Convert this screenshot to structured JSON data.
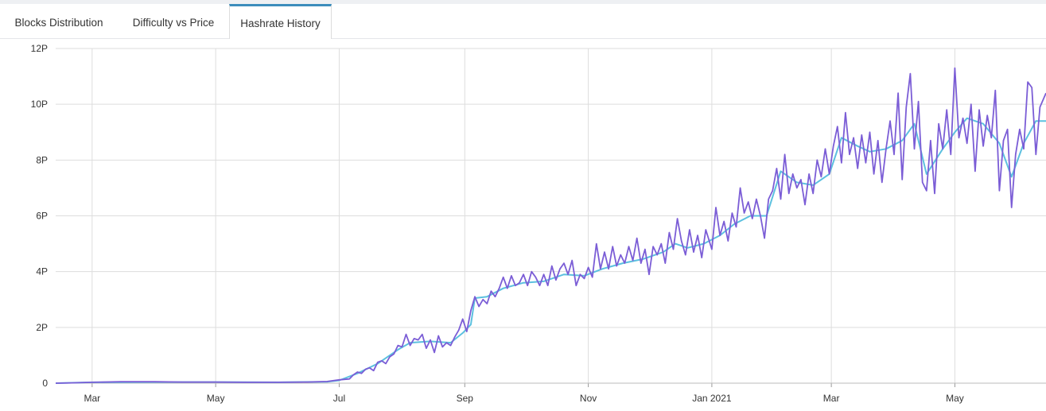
{
  "tabs": [
    {
      "label": "Blocks Distribution",
      "active": false
    },
    {
      "label": "Difficulty vs Price",
      "active": false
    },
    {
      "label": "Hashrate History",
      "active": true
    }
  ],
  "colors": {
    "hashrate": "#7b5dd6",
    "average": "#5cc0df",
    "grid": "#dddddd",
    "accent": "#3c8dbc"
  },
  "chart_data": {
    "type": "line",
    "title": "",
    "xlabel": "",
    "ylabel": "",
    "ylim": [
      0,
      12
    ],
    "y_unit": "P",
    "y_ticks": [
      {
        "value": 0,
        "label": "0"
      },
      {
        "value": 2,
        "label": "2P"
      },
      {
        "value": 4,
        "label": "4P"
      },
      {
        "value": 6,
        "label": "6P"
      },
      {
        "value": 8,
        "label": "8P"
      },
      {
        "value": 10,
        "label": "10P"
      },
      {
        "value": 12,
        "label": "12P"
      }
    ],
    "x_range": [
      "2020-02-12",
      "2021-06-15"
    ],
    "x_ticks": [
      {
        "date": "2020-03-01",
        "label": "Mar"
      },
      {
        "date": "2020-05-01",
        "label": "May"
      },
      {
        "date": "2020-07-01",
        "label": "Jul"
      },
      {
        "date": "2020-09-01",
        "label": "Sep"
      },
      {
        "date": "2020-11-01",
        "label": "Nov"
      },
      {
        "date": "2021-01-01",
        "label": "Jan 2021"
      },
      {
        "date": "2021-03-01",
        "label": "Mar"
      },
      {
        "date": "2021-05-01",
        "label": "May"
      }
    ],
    "grid": true,
    "legend": "none",
    "series": [
      {
        "role": "hashrate",
        "points": [
          [
            "2020-02-12",
            0.0
          ],
          [
            "2020-02-20",
            0.01
          ],
          [
            "2020-03-01",
            0.03
          ],
          [
            "2020-03-15",
            0.05
          ],
          [
            "2020-04-01",
            0.05
          ],
          [
            "2020-04-15",
            0.04
          ],
          [
            "2020-05-01",
            0.04
          ],
          [
            "2020-05-15",
            0.03
          ],
          [
            "2020-06-01",
            0.03
          ],
          [
            "2020-06-15",
            0.04
          ],
          [
            "2020-06-25",
            0.06
          ],
          [
            "2020-07-01",
            0.12
          ],
          [
            "2020-07-06",
            0.15
          ],
          [
            "2020-07-08",
            0.3
          ],
          [
            "2020-07-10",
            0.4
          ],
          [
            "2020-07-12",
            0.35
          ],
          [
            "2020-07-14",
            0.5
          ],
          [
            "2020-07-16",
            0.55
          ],
          [
            "2020-07-18",
            0.45
          ],
          [
            "2020-07-20",
            0.75
          ],
          [
            "2020-07-22",
            0.8
          ],
          [
            "2020-07-24",
            0.7
          ],
          [
            "2020-07-26",
            0.95
          ],
          [
            "2020-07-28",
            1.05
          ],
          [
            "2020-07-30",
            1.35
          ],
          [
            "2020-08-01",
            1.3
          ],
          [
            "2020-08-03",
            1.75
          ],
          [
            "2020-08-05",
            1.35
          ],
          [
            "2020-08-07",
            1.6
          ],
          [
            "2020-08-09",
            1.55
          ],
          [
            "2020-08-11",
            1.75
          ],
          [
            "2020-08-13",
            1.25
          ],
          [
            "2020-08-15",
            1.55
          ],
          [
            "2020-08-17",
            1.1
          ],
          [
            "2020-08-19",
            1.7
          ],
          [
            "2020-08-21",
            1.3
          ],
          [
            "2020-08-23",
            1.45
          ],
          [
            "2020-08-25",
            1.35
          ],
          [
            "2020-08-27",
            1.65
          ],
          [
            "2020-08-29",
            1.9
          ],
          [
            "2020-08-31",
            2.3
          ],
          [
            "2020-09-02",
            1.85
          ],
          [
            "2020-09-04",
            2.6
          ],
          [
            "2020-09-06",
            3.1
          ],
          [
            "2020-09-08",
            2.75
          ],
          [
            "2020-09-10",
            3.0
          ],
          [
            "2020-09-12",
            2.85
          ],
          [
            "2020-09-14",
            3.3
          ],
          [
            "2020-09-16",
            3.1
          ],
          [
            "2020-09-18",
            3.4
          ],
          [
            "2020-09-20",
            3.8
          ],
          [
            "2020-09-22",
            3.4
          ],
          [
            "2020-09-24",
            3.85
          ],
          [
            "2020-09-26",
            3.5
          ],
          [
            "2020-09-28",
            3.6
          ],
          [
            "2020-09-30",
            3.9
          ],
          [
            "2020-10-02",
            3.5
          ],
          [
            "2020-10-04",
            4.0
          ],
          [
            "2020-10-06",
            3.8
          ],
          [
            "2020-10-08",
            3.5
          ],
          [
            "2020-10-10",
            3.9
          ],
          [
            "2020-10-12",
            3.5
          ],
          [
            "2020-10-14",
            4.2
          ],
          [
            "2020-10-16",
            3.7
          ],
          [
            "2020-10-18",
            4.1
          ],
          [
            "2020-10-20",
            4.3
          ],
          [
            "2020-10-22",
            3.9
          ],
          [
            "2020-10-24",
            4.4
          ],
          [
            "2020-10-26",
            3.5
          ],
          [
            "2020-10-28",
            3.9
          ],
          [
            "2020-10-30",
            3.75
          ],
          [
            "2020-11-01",
            4.15
          ],
          [
            "2020-11-03",
            3.8
          ],
          [
            "2020-11-05",
            5.0
          ],
          [
            "2020-11-07",
            4.1
          ],
          [
            "2020-11-09",
            4.7
          ],
          [
            "2020-11-11",
            4.1
          ],
          [
            "2020-11-13",
            4.9
          ],
          [
            "2020-11-15",
            4.2
          ],
          [
            "2020-11-17",
            4.6
          ],
          [
            "2020-11-19",
            4.3
          ],
          [
            "2020-11-21",
            4.9
          ],
          [
            "2020-11-23",
            4.4
          ],
          [
            "2020-11-25",
            5.2
          ],
          [
            "2020-11-27",
            4.3
          ],
          [
            "2020-11-29",
            4.8
          ],
          [
            "2020-12-01",
            3.9
          ],
          [
            "2020-12-03",
            4.9
          ],
          [
            "2020-12-05",
            4.6
          ],
          [
            "2020-12-07",
            5.0
          ],
          [
            "2020-12-09",
            4.3
          ],
          [
            "2020-12-11",
            5.4
          ],
          [
            "2020-12-13",
            4.8
          ],
          [
            "2020-12-15",
            5.9
          ],
          [
            "2020-12-17",
            5.1
          ],
          [
            "2020-12-19",
            4.6
          ],
          [
            "2020-12-21",
            5.5
          ],
          [
            "2020-12-23",
            4.7
          ],
          [
            "2020-12-25",
            5.3
          ],
          [
            "2020-12-27",
            4.5
          ],
          [
            "2020-12-29",
            5.5
          ],
          [
            "2021-01-01",
            4.8
          ],
          [
            "2021-01-03",
            6.3
          ],
          [
            "2021-01-05",
            5.3
          ],
          [
            "2021-01-07",
            5.8
          ],
          [
            "2021-01-09",
            5.1
          ],
          [
            "2021-01-11",
            6.1
          ],
          [
            "2021-01-13",
            5.6
          ],
          [
            "2021-01-15",
            7.0
          ],
          [
            "2021-01-17",
            6.1
          ],
          [
            "2021-01-19",
            6.5
          ],
          [
            "2021-01-21",
            5.9
          ],
          [
            "2021-01-23",
            6.6
          ],
          [
            "2021-01-25",
            6.0
          ],
          [
            "2021-01-27",
            5.2
          ],
          [
            "2021-01-29",
            6.6
          ],
          [
            "2021-01-31",
            6.9
          ],
          [
            "2021-02-02",
            7.7
          ],
          [
            "2021-02-04",
            6.6
          ],
          [
            "2021-02-06",
            8.2
          ],
          [
            "2021-02-08",
            6.8
          ],
          [
            "2021-02-10",
            7.5
          ],
          [
            "2021-02-12",
            7.0
          ],
          [
            "2021-02-14",
            7.3
          ],
          [
            "2021-02-16",
            6.4
          ],
          [
            "2021-02-18",
            7.5
          ],
          [
            "2021-02-20",
            6.8
          ],
          [
            "2021-02-22",
            8.0
          ],
          [
            "2021-02-24",
            7.4
          ],
          [
            "2021-02-26",
            8.4
          ],
          [
            "2021-02-28",
            7.5
          ],
          [
            "2021-03-02",
            8.5
          ],
          [
            "2021-03-04",
            9.2
          ],
          [
            "2021-03-06",
            7.9
          ],
          [
            "2021-03-08",
            9.7
          ],
          [
            "2021-03-10",
            8.2
          ],
          [
            "2021-03-12",
            8.8
          ],
          [
            "2021-03-14",
            7.7
          ],
          [
            "2021-03-16",
            8.9
          ],
          [
            "2021-03-18",
            7.9
          ],
          [
            "2021-03-20",
            9.0
          ],
          [
            "2021-03-22",
            7.5
          ],
          [
            "2021-03-24",
            8.7
          ],
          [
            "2021-03-26",
            7.2
          ],
          [
            "2021-03-28",
            8.4
          ],
          [
            "2021-03-30",
            9.4
          ],
          [
            "2021-04-01",
            8.2
          ],
          [
            "2021-04-03",
            10.4
          ],
          [
            "2021-04-05",
            7.3
          ],
          [
            "2021-04-07",
            9.9
          ],
          [
            "2021-04-09",
            11.1
          ],
          [
            "2021-04-11",
            8.4
          ],
          [
            "2021-04-13",
            10.1
          ],
          [
            "2021-04-15",
            7.2
          ],
          [
            "2021-04-17",
            6.9
          ],
          [
            "2021-04-19",
            8.7
          ],
          [
            "2021-04-21",
            6.8
          ],
          [
            "2021-04-23",
            9.3
          ],
          [
            "2021-04-25",
            8.4
          ],
          [
            "2021-04-27",
            9.8
          ],
          [
            "2021-04-29",
            8.2
          ],
          [
            "2021-05-01",
            11.3
          ],
          [
            "2021-05-03",
            8.8
          ],
          [
            "2021-05-05",
            9.5
          ],
          [
            "2021-05-07",
            8.6
          ],
          [
            "2021-05-09",
            10.0
          ],
          [
            "2021-05-11",
            7.6
          ],
          [
            "2021-05-13",
            9.8
          ],
          [
            "2021-05-15",
            8.5
          ],
          [
            "2021-05-17",
            9.6
          ],
          [
            "2021-05-19",
            8.8
          ],
          [
            "2021-05-21",
            10.5
          ],
          [
            "2021-05-23",
            6.9
          ],
          [
            "2021-05-25",
            8.7
          ],
          [
            "2021-05-27",
            9.1
          ],
          [
            "2021-05-29",
            6.3
          ],
          [
            "2021-05-31",
            8.2
          ],
          [
            "2021-06-02",
            9.1
          ],
          [
            "2021-06-04",
            8.4
          ],
          [
            "2021-06-06",
            10.8
          ],
          [
            "2021-06-08",
            10.6
          ],
          [
            "2021-06-10",
            8.2
          ],
          [
            "2021-06-12",
            9.9
          ],
          [
            "2021-06-15",
            10.4
          ]
        ]
      },
      {
        "role": "average",
        "points": [
          [
            "2020-02-12",
            0.0
          ],
          [
            "2020-03-01",
            0.03
          ],
          [
            "2020-04-01",
            0.04
          ],
          [
            "2020-05-01",
            0.04
          ],
          [
            "2020-06-01",
            0.03
          ],
          [
            "2020-06-25",
            0.05
          ],
          [
            "2020-07-01",
            0.1
          ],
          [
            "2020-07-10",
            0.35
          ],
          [
            "2020-07-20",
            0.7
          ],
          [
            "2020-07-30",
            1.2
          ],
          [
            "2020-08-05",
            1.45
          ],
          [
            "2020-08-15",
            1.5
          ],
          [
            "2020-08-25",
            1.45
          ],
          [
            "2020-08-31",
            1.8
          ],
          [
            "2020-09-04",
            2.1
          ],
          [
            "2020-09-06",
            3.05
          ],
          [
            "2020-09-12",
            3.1
          ],
          [
            "2020-09-20",
            3.4
          ],
          [
            "2020-09-30",
            3.6
          ],
          [
            "2020-10-10",
            3.65
          ],
          [
            "2020-10-20",
            3.9
          ],
          [
            "2020-10-30",
            3.85
          ],
          [
            "2020-11-08",
            4.1
          ],
          [
            "2020-11-18",
            4.3
          ],
          [
            "2020-11-28",
            4.45
          ],
          [
            "2020-12-08",
            4.7
          ],
          [
            "2020-12-14",
            5.0
          ],
          [
            "2020-12-20",
            4.85
          ],
          [
            "2020-12-28",
            5.0
          ],
          [
            "2021-01-05",
            5.3
          ],
          [
            "2021-01-12",
            5.7
          ],
          [
            "2021-01-20",
            6.0
          ],
          [
            "2021-01-28",
            6.0
          ],
          [
            "2021-02-04",
            7.6
          ],
          [
            "2021-02-12",
            7.2
          ],
          [
            "2021-02-20",
            7.1
          ],
          [
            "2021-02-28",
            7.5
          ],
          [
            "2021-03-06",
            8.8
          ],
          [
            "2021-03-14",
            8.5
          ],
          [
            "2021-03-20",
            8.3
          ],
          [
            "2021-03-28",
            8.4
          ],
          [
            "2021-04-05",
            8.7
          ],
          [
            "2021-04-11",
            9.3
          ],
          [
            "2021-04-17",
            7.5
          ],
          [
            "2021-04-25",
            8.4
          ],
          [
            "2021-05-01",
            9.0
          ],
          [
            "2021-05-07",
            9.5
          ],
          [
            "2021-05-15",
            9.3
          ],
          [
            "2021-05-23",
            8.6
          ],
          [
            "2021-05-29",
            7.4
          ],
          [
            "2021-06-04",
            8.6
          ],
          [
            "2021-06-10",
            9.4
          ],
          [
            "2021-06-15",
            9.4
          ]
        ]
      }
    ]
  }
}
